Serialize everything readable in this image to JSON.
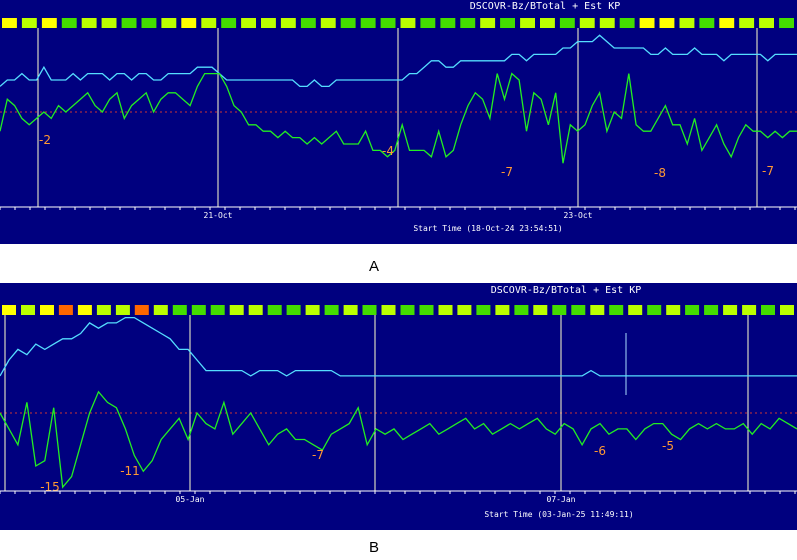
{
  "chart_data": [
    {
      "type": "line",
      "panel_label": "A",
      "title": "DSCOVR-Bz/BTotal + Est KP",
      "start_time": "Start Time (18-Oct-24 23:54:51)",
      "day_labels": [
        "21-Oct",
        "23-Oct"
      ],
      "kp_bar_colors": [
        "#ffff00",
        "#bbff00",
        "#ffff00",
        "#44dd00",
        "#bbff00",
        "#bbff00",
        "#44dd00",
        "#44dd00",
        "#bbff00",
        "#ffff00",
        "#bbff00",
        "#44dd00",
        "#bbff00",
        "#bbff00",
        "#bbff00",
        "#44dd00",
        "#bbff00",
        "#44dd00",
        "#44dd00",
        "#44dd00",
        "#bbff00",
        "#44dd00",
        "#44dd00",
        "#44dd00",
        "#bbff00",
        "#44dd00",
        "#bbff00",
        "#bbff00",
        "#44dd00",
        "#bbff00",
        "#bbff00",
        "#44dd00",
        "#ffff00",
        "#ffff00",
        "#bbff00",
        "#44dd00",
        "#ffff00",
        "#bbff00",
        "#bbff00",
        "#44dd00"
      ],
      "series": [
        {
          "name": "BTotal",
          "color": "#55ddff",
          "values": [
            4,
            5,
            5,
            6,
            5,
            5,
            7,
            5,
            5,
            5,
            6,
            5,
            6,
            6,
            6,
            5,
            6,
            6,
            5,
            6,
            6,
            5,
            5,
            6,
            6,
            6,
            6,
            7,
            7,
            7,
            6,
            5,
            5,
            5,
            5,
            5,
            5,
            5,
            5,
            5,
            5,
            4,
            4,
            5,
            4,
            4,
            5,
            5,
            5,
            5,
            5,
            5,
            5,
            5,
            5,
            5,
            6,
            6,
            7,
            8,
            8,
            7,
            7,
            8,
            8,
            8,
            8,
            8,
            8,
            8,
            9,
            9,
            8,
            9,
            9,
            9,
            9,
            10,
            10,
            11,
            11,
            11,
            12,
            11,
            10,
            10,
            10,
            10,
            10,
            9,
            9,
            10,
            9,
            9,
            9,
            10,
            9,
            9,
            9,
            8,
            9,
            9,
            9,
            9,
            9,
            8,
            9,
            9,
            9,
            9
          ]
        },
        {
          "name": "Bz",
          "color": "#22ee22",
          "values": [
            -3,
            2,
            1,
            -1,
            -2,
            -1,
            0,
            -1,
            1,
            0,
            1,
            2,
            3,
            1,
            0,
            2,
            3,
            -1,
            1,
            2,
            3,
            0,
            2,
            3,
            3,
            2,
            1,
            4,
            6,
            6,
            6,
            4,
            1,
            0,
            -2,
            -2,
            -3,
            -3,
            -4,
            -3,
            -4,
            -4,
            -5,
            -4,
            -5,
            -4,
            -3,
            -5,
            -5,
            -5,
            -3,
            -6,
            -6,
            -7,
            -6,
            -2,
            -6,
            -6,
            -6,
            -7,
            -3,
            -7,
            -6,
            -2,
            1,
            3,
            2,
            -1,
            6,
            2,
            6,
            5,
            -3,
            3,
            2,
            -2,
            3,
            -8,
            -2,
            -3,
            -2,
            1,
            3,
            -3,
            0,
            -1,
            6,
            -2,
            -3,
            -3,
            -1,
            1,
            -2,
            -2,
            -5,
            -1,
            -6,
            -4,
            -2,
            -5,
            -7,
            -4,
            -2,
            -3,
            -3,
            -4,
            -3,
            -4,
            -3,
            -3
          ]
        }
      ],
      "min_labels": [
        "-2",
        "-4",
        "-7",
        "-8",
        "-7"
      ]
    },
    {
      "type": "line",
      "panel_label": "B",
      "title": "DSCOVR-Bz/BTotal + Est KP",
      "start_time": "Start Time (03-Jan-25 11:49:11)",
      "day_labels": [
        "05-Jan",
        "07-Jan"
      ],
      "kp_bar_colors": [
        "#ffff00",
        "#bbff00",
        "#ffff00",
        "#ff6600",
        "#ffff00",
        "#bbff00",
        "#bbff00",
        "#ff6600",
        "#bbff00",
        "#44dd00",
        "#44dd00",
        "#44dd00",
        "#bbff00",
        "#bbff00",
        "#44dd00",
        "#44dd00",
        "#bbff00",
        "#44dd00",
        "#bbff00",
        "#44dd00",
        "#bbff00",
        "#44dd00",
        "#44dd00",
        "#bbff00",
        "#bbff00",
        "#44dd00",
        "#bbff00",
        "#44dd00",
        "#bbff00",
        "#44dd00",
        "#44dd00",
        "#bbff00",
        "#44dd00",
        "#bbff00",
        "#44dd00",
        "#bbff00",
        "#44dd00",
        "#44dd00",
        "#bbff00",
        "#bbff00",
        "#44dd00",
        "#bbff00"
      ],
      "series": [
        {
          "name": "BTotal",
          "color": "#55ddff",
          "values": [
            7,
            10,
            12,
            11,
            13,
            12,
            13,
            14,
            14,
            15,
            17,
            16,
            17,
            17,
            18,
            18,
            17,
            16,
            15,
            14,
            12,
            12,
            10,
            8,
            8,
            8,
            8,
            8,
            7,
            8,
            8,
            8,
            7,
            8,
            8,
            8,
            8,
            8,
            7,
            7,
            7,
            7,
            7,
            7,
            7,
            7,
            7,
            7,
            7,
            7,
            7,
            7,
            7,
            7,
            7,
            7,
            7,
            7,
            7,
            7,
            7,
            7,
            7,
            7,
            7,
            7,
            8,
            7,
            7,
            7,
            7,
            7,
            7,
            7,
            7,
            7,
            7,
            7,
            7,
            7,
            7,
            7,
            7,
            7,
            7,
            7,
            7,
            7,
            7,
            7
          ]
        },
        {
          "name": "Bz",
          "color": "#22ee22",
          "values": [
            0,
            -3,
            -6,
            2,
            -10,
            -9,
            1,
            -14,
            -12,
            -6,
            0,
            4,
            2,
            1,
            -3,
            -8,
            -11,
            -9,
            -5,
            -3,
            -1,
            -5,
            0,
            -2,
            -3,
            2,
            -4,
            -2,
            0,
            -3,
            -6,
            -4,
            -3,
            -5,
            -5,
            -6,
            -7,
            -4,
            -3,
            -2,
            1,
            -6,
            -3,
            -4,
            -3,
            -5,
            -4,
            -3,
            -2,
            -4,
            -3,
            -2,
            -1,
            -3,
            -2,
            -4,
            -3,
            -2,
            -3,
            -2,
            -1,
            -3,
            -4,
            -2,
            -3,
            -6,
            -3,
            -2,
            -4,
            -3,
            -3,
            -5,
            -3,
            -2,
            -2,
            -4,
            -5,
            -3,
            -2,
            -3,
            -2,
            -3,
            -3,
            -2,
            -4,
            -2,
            -3,
            -1,
            -2,
            -3
          ]
        }
      ],
      "min_labels": [
        "-15",
        "-11",
        "-7",
        "-6",
        "-5"
      ]
    }
  ]
}
